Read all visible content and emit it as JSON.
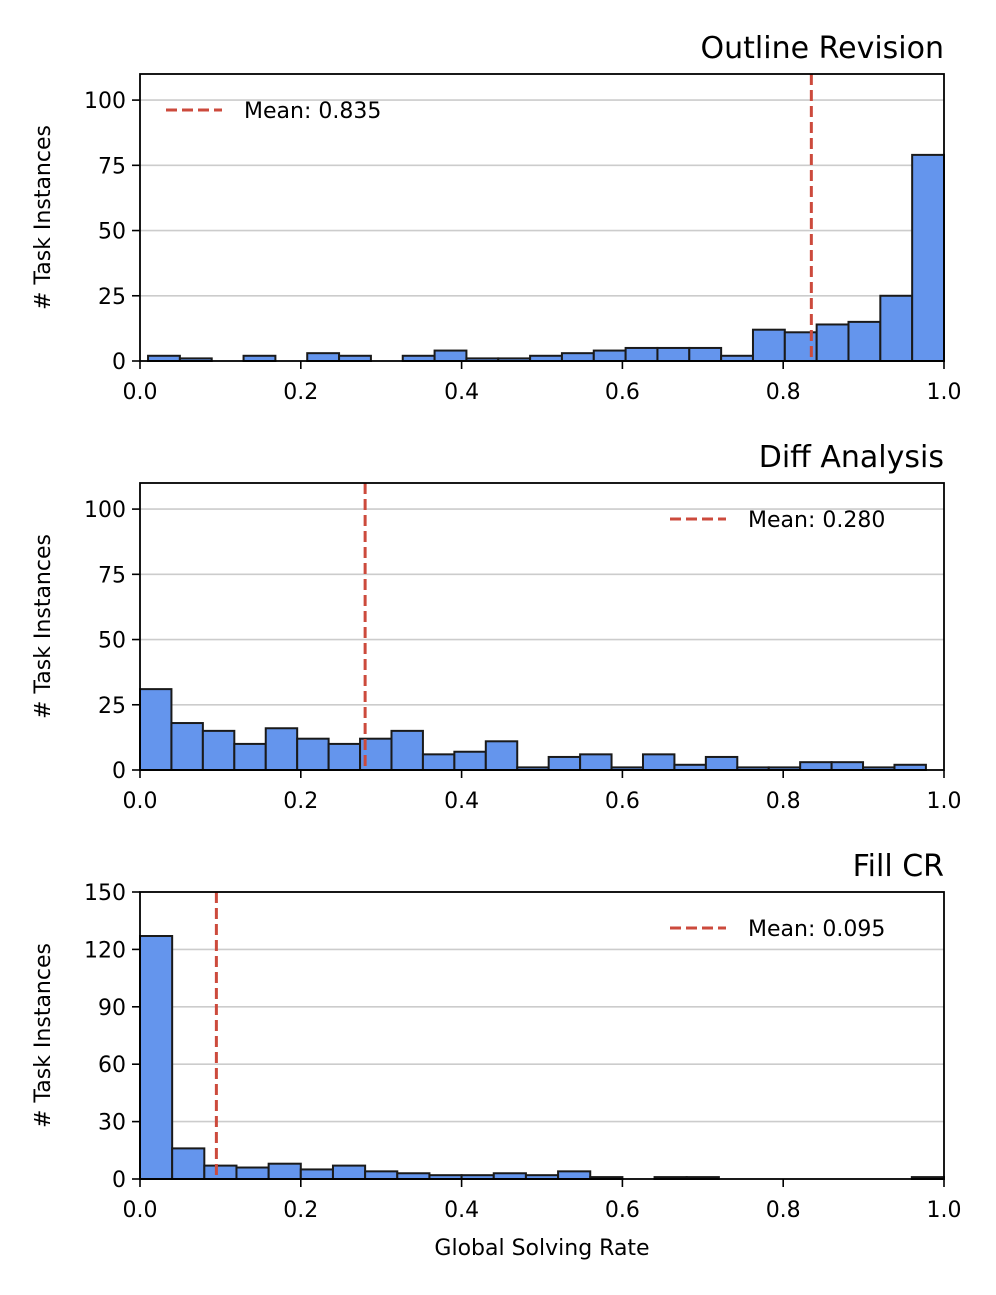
{
  "chart_data": [
    {
      "type": "bar",
      "title": "Outline Revision",
      "ylabel": "# Task Instances",
      "xlabel": "",
      "xlim": [
        0,
        1
      ],
      "ylim": [
        0,
        110
      ],
      "xticks": [
        "0.0",
        "0.2",
        "0.4",
        "0.6",
        "0.8",
        "1.0"
      ],
      "yticks": [
        "0",
        "25",
        "50",
        "75",
        "100"
      ],
      "ytick_values": [
        0,
        25,
        50,
        75,
        100
      ],
      "bin_edges": [
        0.01,
        0.0496,
        0.0892,
        0.1288,
        0.1684,
        0.208,
        0.2476,
        0.2872,
        0.3268,
        0.3664,
        0.406,
        0.4456,
        0.4852,
        0.5248,
        0.5644,
        0.604,
        0.6436,
        0.6832,
        0.7228,
        0.7624,
        0.802,
        0.8416,
        0.8812,
        0.9208,
        0.9604,
        1.0
      ],
      "values": [
        2,
        1,
        0,
        2,
        0,
        3,
        2,
        0,
        2,
        4,
        1,
        1,
        2,
        3,
        4,
        5,
        5,
        5,
        2,
        12,
        11,
        14,
        15,
        25,
        79
      ],
      "mean": 0.835,
      "legend_label": "Mean: 0.835",
      "legend_position": "top-left",
      "bar_color": "#6495ED",
      "mean_color": "#CC4A3C"
    },
    {
      "type": "bar",
      "title": "Diff Analysis",
      "ylabel": "# Task Instances",
      "xlabel": "",
      "xlim": [
        0,
        1
      ],
      "ylim": [
        0,
        110
      ],
      "xticks": [
        "0.0",
        "0.2",
        "0.4",
        "0.6",
        "0.8",
        "1.0"
      ],
      "yticks": [
        "0",
        "25",
        "50",
        "75",
        "100"
      ],
      "ytick_values": [
        0,
        25,
        50,
        75,
        100
      ],
      "bin_edges": [
        0.0,
        0.0391,
        0.0782,
        0.1173,
        0.1564,
        0.1955,
        0.2346,
        0.2737,
        0.3128,
        0.3519,
        0.391,
        0.4301,
        0.4692,
        0.5083,
        0.5474,
        0.5865,
        0.6256,
        0.6647,
        0.7038,
        0.7429,
        0.782,
        0.8211,
        0.8602,
        0.8993,
        0.9384,
        0.9775
      ],
      "values": [
        31,
        18,
        15,
        10,
        16,
        12,
        10,
        12,
        15,
        6,
        7,
        11,
        1,
        5,
        6,
        1,
        6,
        2,
        5,
        1,
        1,
        3,
        3,
        1,
        2
      ],
      "mean": 0.28,
      "legend_label": "Mean: 0.280",
      "legend_position": "top-right",
      "bar_color": "#6495ED",
      "mean_color": "#CC4A3C"
    },
    {
      "type": "bar",
      "title": "Fill CR",
      "ylabel": "# Task Instances",
      "xlabel": "Global Solving Rate",
      "xlim": [
        0,
        1
      ],
      "ylim": [
        0,
        150
      ],
      "xticks": [
        "0.0",
        "0.2",
        "0.4",
        "0.6",
        "0.8",
        "1.0"
      ],
      "yticks": [
        "0",
        "30",
        "60",
        "90",
        "120",
        "150"
      ],
      "ytick_values": [
        0,
        30,
        60,
        90,
        120,
        150
      ],
      "bin_edges": [
        0.0,
        0.04,
        0.08,
        0.12,
        0.16,
        0.2,
        0.24,
        0.28,
        0.32,
        0.36,
        0.4,
        0.44,
        0.48,
        0.52,
        0.56,
        0.6,
        0.64,
        0.68,
        0.72,
        0.76,
        0.8,
        0.84,
        0.88,
        0.92,
        0.96,
        1.0
      ],
      "values": [
        127,
        16,
        7,
        6,
        8,
        5,
        7,
        4,
        3,
        2,
        2,
        3,
        2,
        4,
        1,
        0,
        1,
        1,
        0,
        0,
        0,
        0,
        0,
        0,
        1
      ],
      "mean": 0.095,
      "legend_label": "Mean: 0.095",
      "legend_position": "top-right",
      "bar_color": "#6495ED",
      "mean_color": "#CC4A3C"
    }
  ]
}
